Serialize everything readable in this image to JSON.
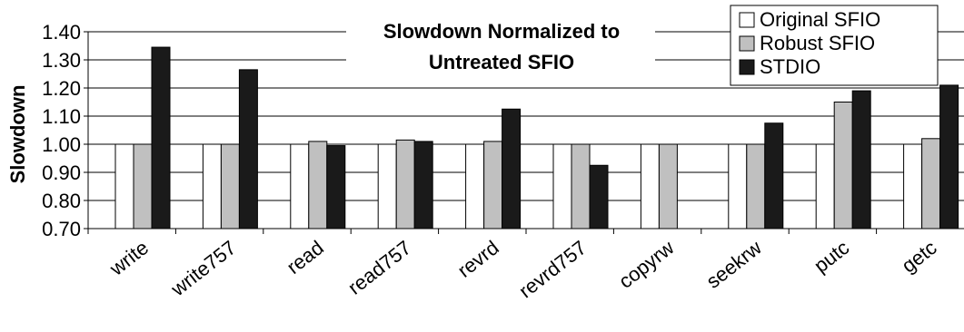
{
  "chart_data": {
    "type": "bar",
    "title_lines": [
      "Slowdown Normalized to",
      "Untreated SFIO"
    ],
    "ylabel": "Slowdown",
    "xlabel": "",
    "ylim": [
      0.7,
      1.4
    ],
    "yticks": [
      "0.70",
      "0.80",
      "0.90",
      "1.00",
      "1.10",
      "1.20",
      "1.30",
      "1.40"
    ],
    "grid": true,
    "legend_position": "top-right",
    "categories": [
      "write",
      "write757",
      "read",
      "read757",
      "revrd",
      "revrd757",
      "copyrw",
      "seekrw",
      "putc",
      "getc"
    ],
    "series": [
      {
        "name": "Original SFIO",
        "color": "#ffffff",
        "values": [
          1.0,
          1.0,
          1.0,
          1.0,
          1.0,
          1.0,
          1.0,
          1.0,
          1.0,
          1.0
        ]
      },
      {
        "name": "Robust SFIO",
        "color": "#c0c0c0",
        "values": [
          1.0,
          1.0,
          1.01,
          1.015,
          1.01,
          1.0,
          1.0,
          1.0,
          1.15,
          1.02
        ]
      },
      {
        "name": "STDIO",
        "color": "#1a1a1a",
        "values": [
          1.345,
          1.265,
          0.995,
          1.01,
          1.125,
          0.925,
          null,
          1.075,
          1.19,
          1.21
        ]
      }
    ]
  }
}
